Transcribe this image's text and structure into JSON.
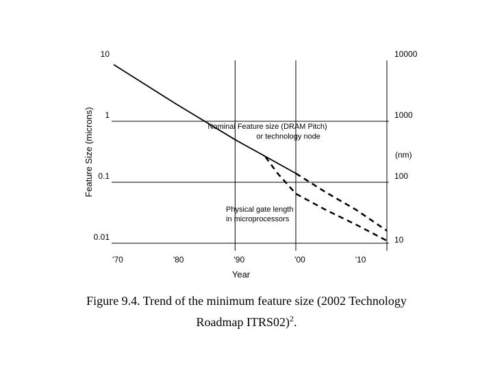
{
  "caption": {
    "line1": "Figure 9.4. Trend of the minimum feature size (2002 Technology",
    "line2": "Roadmap ITRS02)",
    "sup": "2",
    "end": "."
  },
  "chart_data": {
    "type": "line",
    "xlabel": "Year",
    "ylabel": "Feature Size (microns)",
    "y2label": "(nm)",
    "xlim": [
      1970,
      2015
    ],
    "ylim": [
      0.01,
      10
    ],
    "yscale": "log",
    "x_ticks": [
      {
        "value": 1970,
        "label": "'70"
      },
      {
        "value": 1980,
        "label": "'80"
      },
      {
        "value": 1990,
        "label": "'90"
      },
      {
        "value": 2000,
        "label": "'00"
      },
      {
        "value": 2010,
        "label": "'10"
      }
    ],
    "y_ticks_left": [
      {
        "value": 10,
        "label": "10"
      },
      {
        "value": 1,
        "label": "1"
      },
      {
        "value": 0.1,
        "label": "0.1"
      },
      {
        "value": 0.01,
        "label": "0.01"
      }
    ],
    "y_ticks_right": [
      {
        "value": 10,
        "label": "10000"
      },
      {
        "value": 1,
        "label": "1000"
      },
      {
        "value": 0.1,
        "label": "100"
      },
      {
        "value": 0.01,
        "label": "10"
      }
    ],
    "grid": true,
    "annotations": [
      {
        "text": "Nominal Feature size (DRAM Pitch)",
        "x": 1985.5,
        "y": 0.75
      },
      {
        "text": "or technology node",
        "x": 1993.5,
        "y": 0.52
      },
      {
        "text": "Physical gate length",
        "x": 1988.5,
        "y": 0.033
      },
      {
        "text": "in microprocessors",
        "x": 1988.5,
        "y": 0.023
      }
    ],
    "series": [
      {
        "id": "node-solid",
        "style": "solid",
        "x": [
          1970,
          1980,
          1990,
          2000
        ],
        "y": [
          8.5,
          2.0,
          0.5,
          0.14
        ]
      },
      {
        "id": "node-dashed",
        "style": "dashed",
        "x": [
          2000,
          2005,
          2010,
          2015
        ],
        "y": [
          0.14,
          0.068,
          0.035,
          0.016
        ]
      },
      {
        "id": "gate-dashed",
        "style": "dashed",
        "x": [
          1995,
          1997,
          2000,
          2005,
          2010,
          2015
        ],
        "y": [
          0.26,
          0.14,
          0.065,
          0.035,
          0.02,
          0.011
        ]
      }
    ]
  }
}
